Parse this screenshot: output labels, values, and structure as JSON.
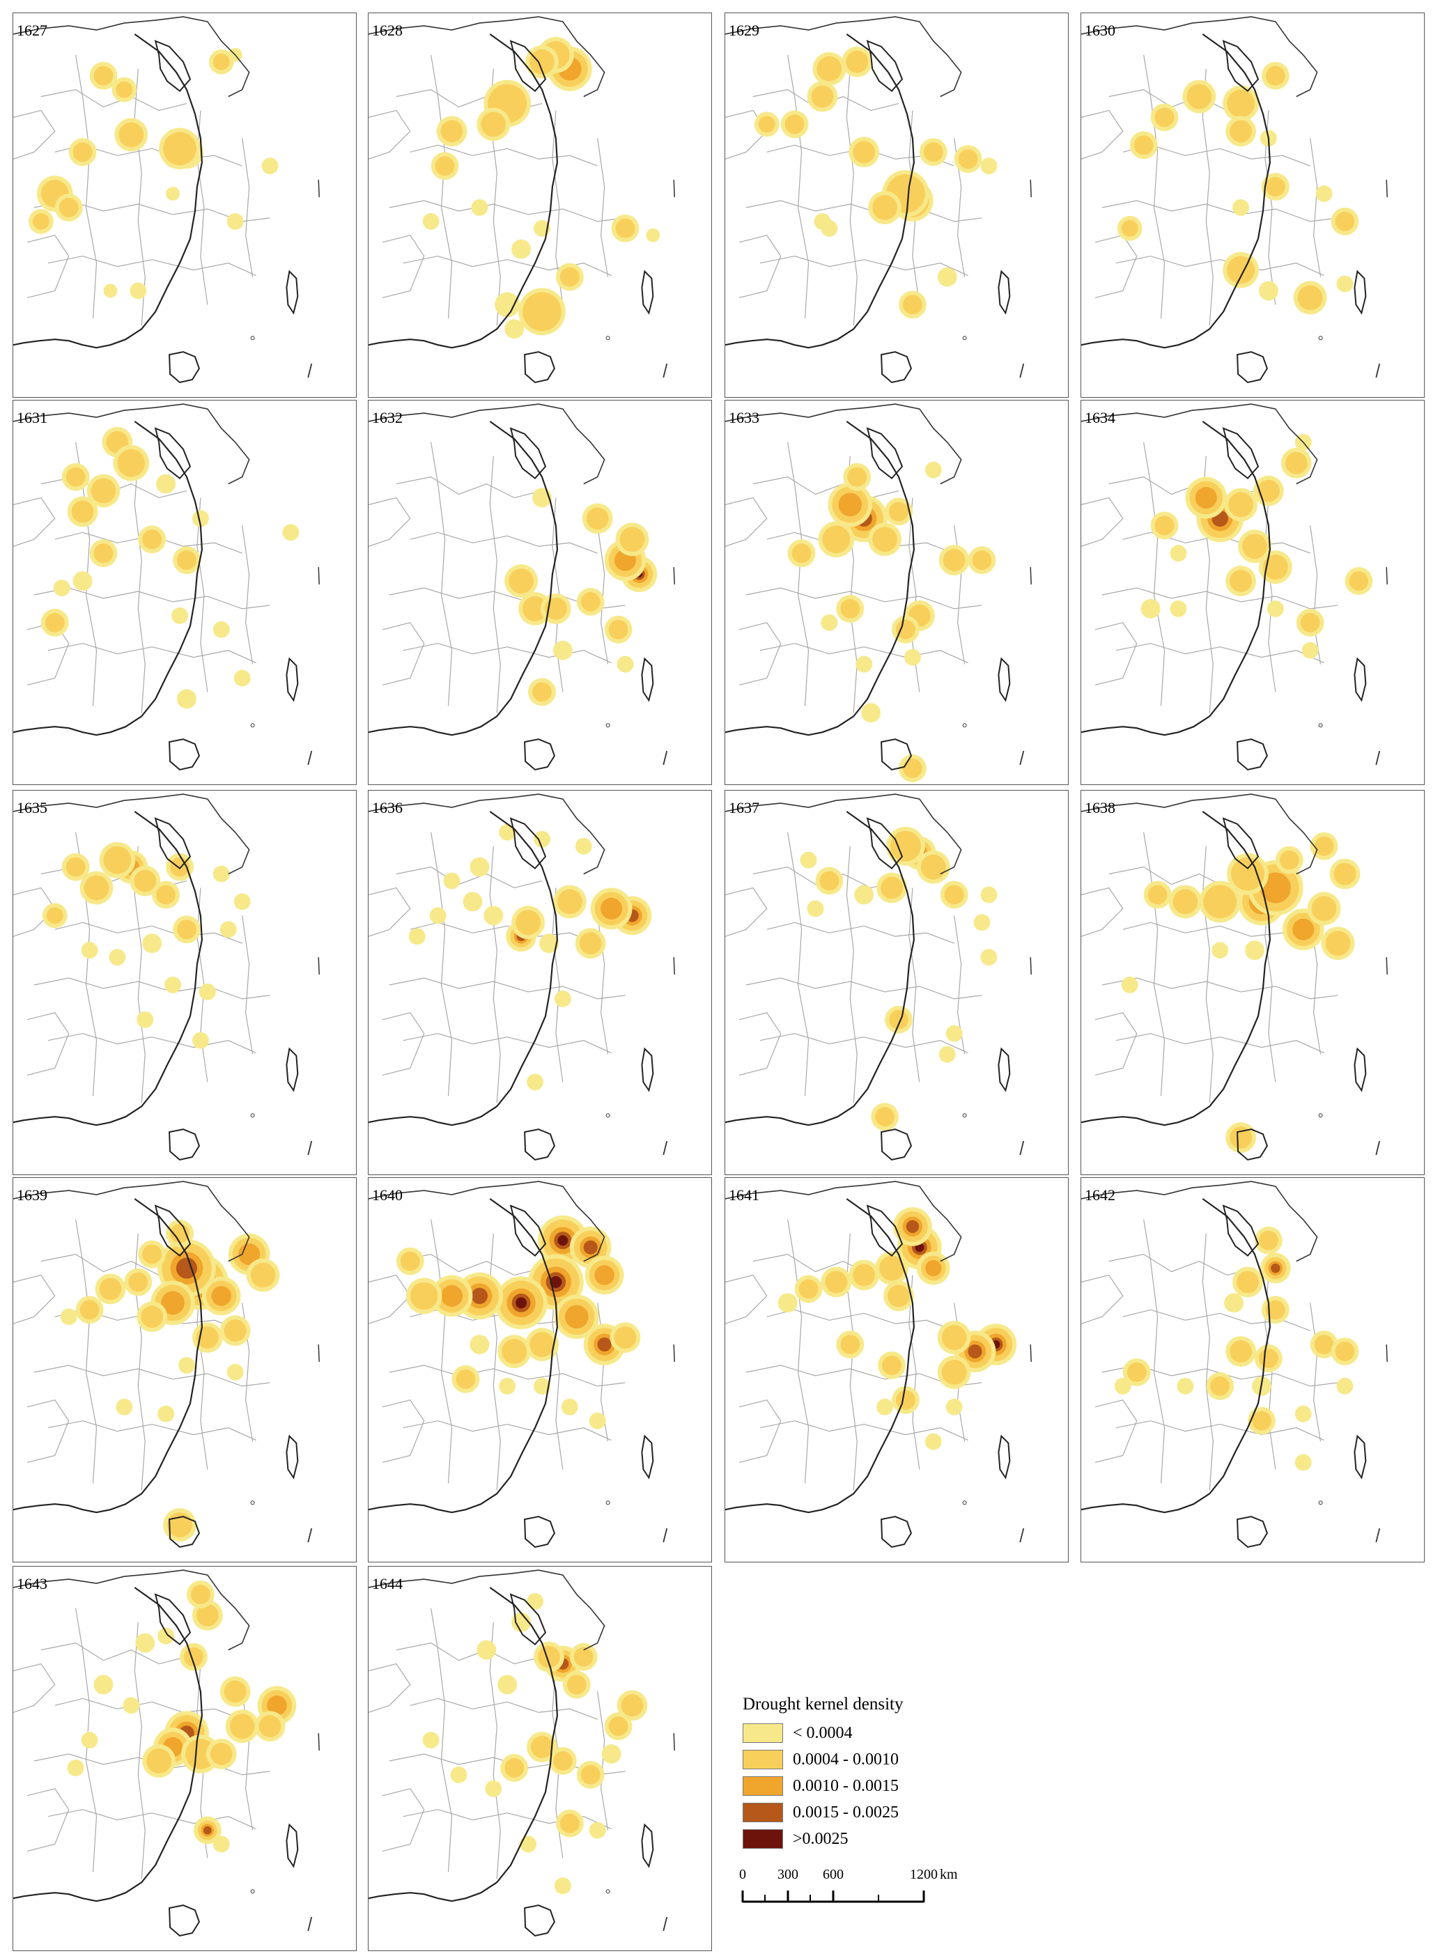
{
  "panels": [
    {
      "year": "1627"
    },
    {
      "year": "1628"
    },
    {
      "year": "1629"
    },
    {
      "year": "1630"
    },
    {
      "year": "1631"
    },
    {
      "year": "1632"
    },
    {
      "year": "1633"
    },
    {
      "year": "1634"
    },
    {
      "year": "1635"
    },
    {
      "year": "1636"
    },
    {
      "year": "1637"
    },
    {
      "year": "1638"
    },
    {
      "year": "1639"
    },
    {
      "year": "1640"
    },
    {
      "year": "1641"
    },
    {
      "year": "1642"
    },
    {
      "year": "1643"
    },
    {
      "year": "1644"
    }
  ],
  "legend": {
    "title": "Drought kernel density",
    "classes": [
      {
        "label": "< 0.0004",
        "color": "#f7e98a"
      },
      {
        "label": "0.0004 - 0.0010",
        "color": "#f9cf5b"
      },
      {
        "label": "0.0010 - 0.0015",
        "color": "#f0a52c"
      },
      {
        "label": "0.0015 - 0.0025",
        "color": "#b5581a"
      },
      {
        "label": ">0.0025",
        "color": "#6e130c"
      }
    ]
  },
  "scale": {
    "ticks": [
      "0",
      "300",
      "600",
      "1200"
    ],
    "unit": "km"
  }
}
